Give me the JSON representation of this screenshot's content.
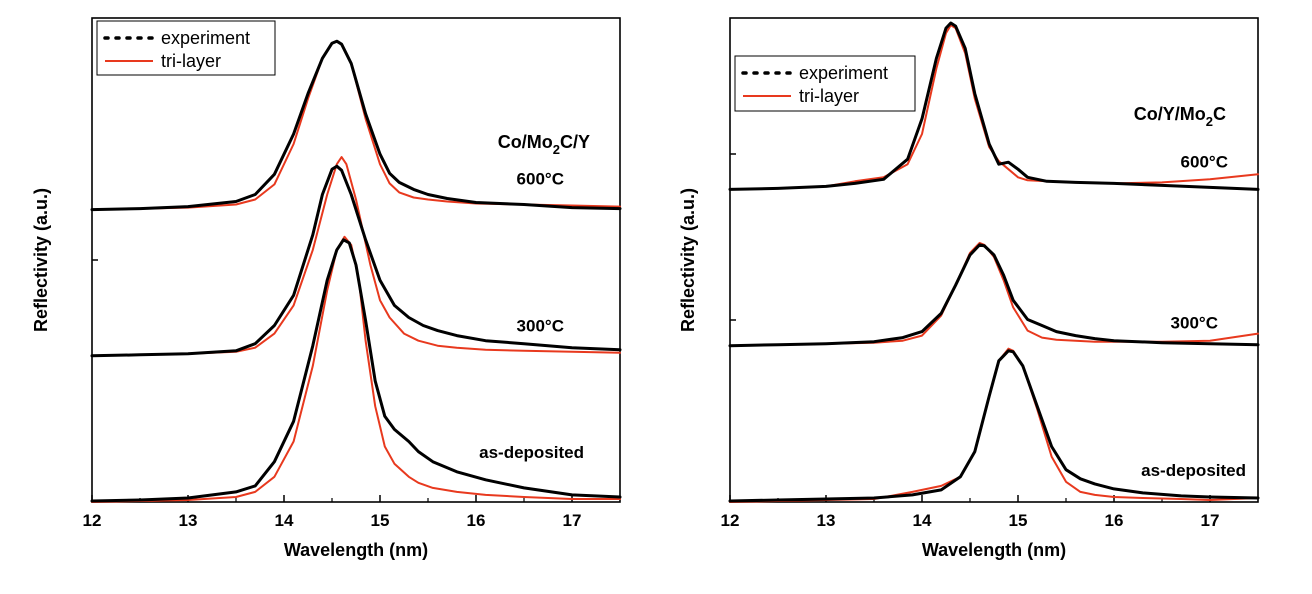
{
  "chart_data": [
    {
      "type": "line",
      "title": "Co/Mo2C/Y",
      "title_parts": {
        "a": "Co/Mo",
        "sub": "2",
        "b": "C/Y"
      },
      "xlabel": "Wavelength (nm)",
      "ylabel": "Reflectivity (a.u.)",
      "xlim": [
        12,
        17.5
      ],
      "xticks": [
        12,
        13,
        14,
        15,
        16,
        17
      ],
      "ylim": [
        0,
        4.8
      ],
      "y_tick_labels": "none",
      "grid": false,
      "legend": {
        "placement": "top-left",
        "entries": [
          "experiment",
          "tri-layer"
        ]
      },
      "colors": {
        "experiment": "#000000",
        "tri-layer": "#e8391e"
      },
      "series": [
        {
          "curve": "as-deposited",
          "label": "as-deposited",
          "offset": 0,
          "experiment": {
            "x": [
              12,
              12.5,
              13,
              13.5,
              13.7,
              13.9,
              14.1,
              14.3,
              14.45,
              14.55,
              14.62,
              14.68,
              14.75,
              14.85,
              14.95,
              15.05,
              15.15,
              15.3,
              15.4,
              15.55,
              15.8,
              16.1,
              16.5,
              17,
              17.5
            ],
            "y": [
              0.01,
              0.02,
              0.04,
              0.1,
              0.16,
              0.4,
              0.8,
              1.55,
              2.2,
              2.5,
              2.6,
              2.57,
              2.35,
              1.8,
              1.2,
              0.85,
              0.72,
              0.6,
              0.5,
              0.4,
              0.3,
              0.22,
              0.14,
              0.07,
              0.05
            ]
          },
          "tri-layer": {
            "x": [
              12,
              12.5,
              13,
              13.5,
              13.7,
              13.9,
              14.1,
              14.3,
              14.45,
              14.55,
              14.63,
              14.7,
              14.78,
              14.85,
              14.95,
              15.05,
              15.15,
              15.3,
              15.4,
              15.55,
              15.8,
              16.1,
              16.5,
              17,
              17.5
            ],
            "y": [
              0.0,
              0.01,
              0.02,
              0.05,
              0.1,
              0.25,
              0.6,
              1.35,
              2.1,
              2.5,
              2.63,
              2.55,
              2.2,
              1.6,
              0.95,
              0.55,
              0.38,
              0.25,
              0.19,
              0.14,
              0.1,
              0.07,
              0.05,
              0.03,
              0.03
            ]
          }
        },
        {
          "curve": "300°C",
          "label": "300°C",
          "offset": 1.45,
          "experiment": {
            "x": [
              12,
              12.5,
              13,
              13.5,
              13.7,
              13.9,
              14.1,
              14.3,
              14.4,
              14.5,
              14.55,
              14.6,
              14.7,
              14.85,
              15.0,
              15.15,
              15.3,
              15.45,
              15.6,
              15.8,
              16.1,
              16.5,
              17,
              17.5
            ],
            "y": [
              0.0,
              0.01,
              0.02,
              0.05,
              0.12,
              0.3,
              0.6,
              1.2,
              1.6,
              1.85,
              1.88,
              1.84,
              1.6,
              1.15,
              0.75,
              0.5,
              0.38,
              0.3,
              0.25,
              0.2,
              0.15,
              0.12,
              0.08,
              0.06
            ]
          },
          "tri-layer": {
            "x": [
              12,
              12.5,
              13,
              13.5,
              13.7,
              13.9,
              14.1,
              14.3,
              14.45,
              14.55,
              14.6,
              14.65,
              14.75,
              14.9,
              15.0,
              15.1,
              15.25,
              15.4,
              15.6,
              15.8,
              16.1,
              16.5,
              17,
              17.5
            ],
            "y": [
              0.0,
              0.01,
              0.02,
              0.04,
              0.08,
              0.22,
              0.5,
              1.05,
              1.6,
              1.9,
              1.97,
              1.9,
              1.55,
              0.9,
              0.55,
              0.38,
              0.22,
              0.15,
              0.1,
              0.08,
              0.06,
              0.05,
              0.04,
              0.03
            ]
          }
        },
        {
          "curve": "600°C",
          "label": "600°C",
          "offset": 2.9,
          "experiment": {
            "x": [
              12,
              12.5,
              13,
              13.5,
              13.7,
              13.9,
              14.1,
              14.25,
              14.4,
              14.5,
              14.55,
              14.6,
              14.7,
              14.85,
              15.0,
              15.1,
              15.2,
              15.35,
              15.5,
              15.7,
              16.0,
              16.5,
              17,
              17.5
            ],
            "y": [
              0.0,
              0.01,
              0.03,
              0.08,
              0.15,
              0.35,
              0.75,
              1.15,
              1.5,
              1.65,
              1.67,
              1.64,
              1.45,
              0.95,
              0.55,
              0.36,
              0.27,
              0.2,
              0.15,
              0.11,
              0.07,
              0.05,
              0.02,
              0.01
            ]
          },
          "tri-layer": {
            "x": [
              12,
              12.5,
              13,
              13.5,
              13.7,
              13.9,
              14.1,
              14.25,
              14.4,
              14.5,
              14.55,
              14.6,
              14.7,
              14.85,
              15.0,
              15.1,
              15.2,
              15.35,
              15.5,
              15.7,
              16.0,
              16.5,
              17,
              17.5
            ],
            "y": [
              0.0,
              0.01,
              0.02,
              0.05,
              0.1,
              0.25,
              0.65,
              1.1,
              1.5,
              1.65,
              1.67,
              1.64,
              1.45,
              0.9,
              0.45,
              0.26,
              0.17,
              0.12,
              0.1,
              0.08,
              0.06,
              0.05,
              0.04,
              0.03
            ]
          }
        }
      ]
    },
    {
      "type": "line",
      "title": "Co/Y/Mo2C",
      "title_parts": {
        "a": "Co/Y/Mo",
        "sub": "2",
        "b": "C"
      },
      "xlabel": "Wavelength (nm)",
      "ylabel": "Reflectivity (a.u.)",
      "xlim": [
        12,
        17.5
      ],
      "xticks": [
        12,
        13,
        14,
        15,
        16,
        17
      ],
      "ylim": [
        0,
        4.8
      ],
      "y_tick_labels": "none",
      "grid": false,
      "legend": {
        "placement": "top-left",
        "entries": [
          "experiment",
          "tri-layer"
        ]
      },
      "colors": {
        "experiment": "#000000",
        "tri-layer": "#e8391e"
      },
      "series": [
        {
          "curve": "as-deposited",
          "label": "as-deposited",
          "offset": 0,
          "experiment": {
            "x": [
              12,
              12.5,
              13,
              13.5,
              13.9,
              14.2,
              14.4,
              14.55,
              14.7,
              14.8,
              14.9,
              14.95,
              15.05,
              15.2,
              15.35,
              15.5,
              15.65,
              15.8,
              16.0,
              16.3,
              16.7,
              17,
              17.5
            ],
            "y": [
              0.01,
              0.02,
              0.03,
              0.04,
              0.07,
              0.12,
              0.25,
              0.5,
              1.05,
              1.4,
              1.5,
              1.49,
              1.35,
              0.95,
              0.55,
              0.32,
              0.23,
              0.18,
              0.13,
              0.09,
              0.06,
              0.05,
              0.04
            ]
          },
          "tri-layer": {
            "x": [
              12,
              12.5,
              13,
              13.5,
              13.9,
              14.2,
              14.4,
              14.55,
              14.7,
              14.8,
              14.9,
              14.95,
              15.05,
              15.2,
              15.35,
              15.5,
              15.65,
              15.8,
              16.0,
              16.3,
              16.7,
              17,
              17.5
            ],
            "y": [
              0.0,
              0.01,
              0.02,
              0.03,
              0.1,
              0.16,
              0.25,
              0.5,
              1.05,
              1.4,
              1.52,
              1.5,
              1.35,
              0.92,
              0.45,
              0.2,
              0.1,
              0.07,
              0.05,
              0.04,
              0.03,
              0.02,
              0.04
            ]
          }
        },
        {
          "curve": "300°C",
          "label": "300°C",
          "offset": 1.55,
          "experiment": {
            "x": [
              12,
              12.5,
              13,
              13.5,
              13.8,
              14.0,
              14.2,
              14.35,
              14.5,
              14.6,
              14.65,
              14.75,
              14.85,
              14.95,
              15.1,
              15.25,
              15.4,
              15.6,
              15.8,
              16.0,
              16.5,
              17,
              17.5
            ],
            "y": [
              0.0,
              0.01,
              0.02,
              0.04,
              0.08,
              0.14,
              0.32,
              0.6,
              0.9,
              1.0,
              0.99,
              0.9,
              0.7,
              0.45,
              0.26,
              0.2,
              0.14,
              0.1,
              0.07,
              0.05,
              0.03,
              0.02,
              0.01
            ]
          },
          "tri-layer": {
            "x": [
              12,
              12.5,
              13,
              13.5,
              13.8,
              14.0,
              14.2,
              14.35,
              14.5,
              14.6,
              14.65,
              14.75,
              14.85,
              14.95,
              15.1,
              15.25,
              15.4,
              15.6,
              15.8,
              16.0,
              16.5,
              17,
              17.5
            ],
            "y": [
              0.0,
              0.01,
              0.02,
              0.03,
              0.05,
              0.1,
              0.3,
              0.6,
              0.92,
              1.02,
              1.0,
              0.88,
              0.65,
              0.38,
              0.15,
              0.08,
              0.06,
              0.05,
              0.04,
              0.04,
              0.04,
              0.05,
              0.12
            ]
          }
        },
        {
          "curve": "600°C",
          "label": "600°C",
          "offset": 3.1,
          "experiment": {
            "x": [
              12,
              12.5,
              13,
              13.3,
              13.6,
              13.85,
              14.0,
              14.15,
              14.25,
              14.3,
              14.35,
              14.45,
              14.55,
              14.7,
              14.8,
              14.9,
              15.0,
              15.1,
              15.3,
              15.6,
              16.0,
              16.5,
              17,
              17.5
            ],
            "y": [
              0.0,
              0.01,
              0.03,
              0.06,
              0.1,
              0.3,
              0.7,
              1.3,
              1.6,
              1.65,
              1.62,
              1.4,
              0.95,
              0.45,
              0.25,
              0.27,
              0.2,
              0.12,
              0.08,
              0.07,
              0.06,
              0.04,
              0.02,
              0.0
            ]
          },
          "tri-layer": {
            "x": [
              12,
              12.5,
              13,
              13.3,
              13.6,
              13.85,
              14.0,
              14.15,
              14.25,
              14.3,
              14.35,
              14.45,
              14.55,
              14.7,
              14.8,
              14.9,
              15.0,
              15.1,
              15.3,
              15.6,
              16.0,
              16.5,
              17,
              17.5
            ],
            "y": [
              0.0,
              0.01,
              0.03,
              0.08,
              0.12,
              0.25,
              0.55,
              1.2,
              1.55,
              1.63,
              1.6,
              1.35,
              0.9,
              0.42,
              0.28,
              0.2,
              0.12,
              0.09,
              0.08,
              0.07,
              0.06,
              0.07,
              0.1,
              0.15
            ]
          }
        }
      ]
    }
  ]
}
